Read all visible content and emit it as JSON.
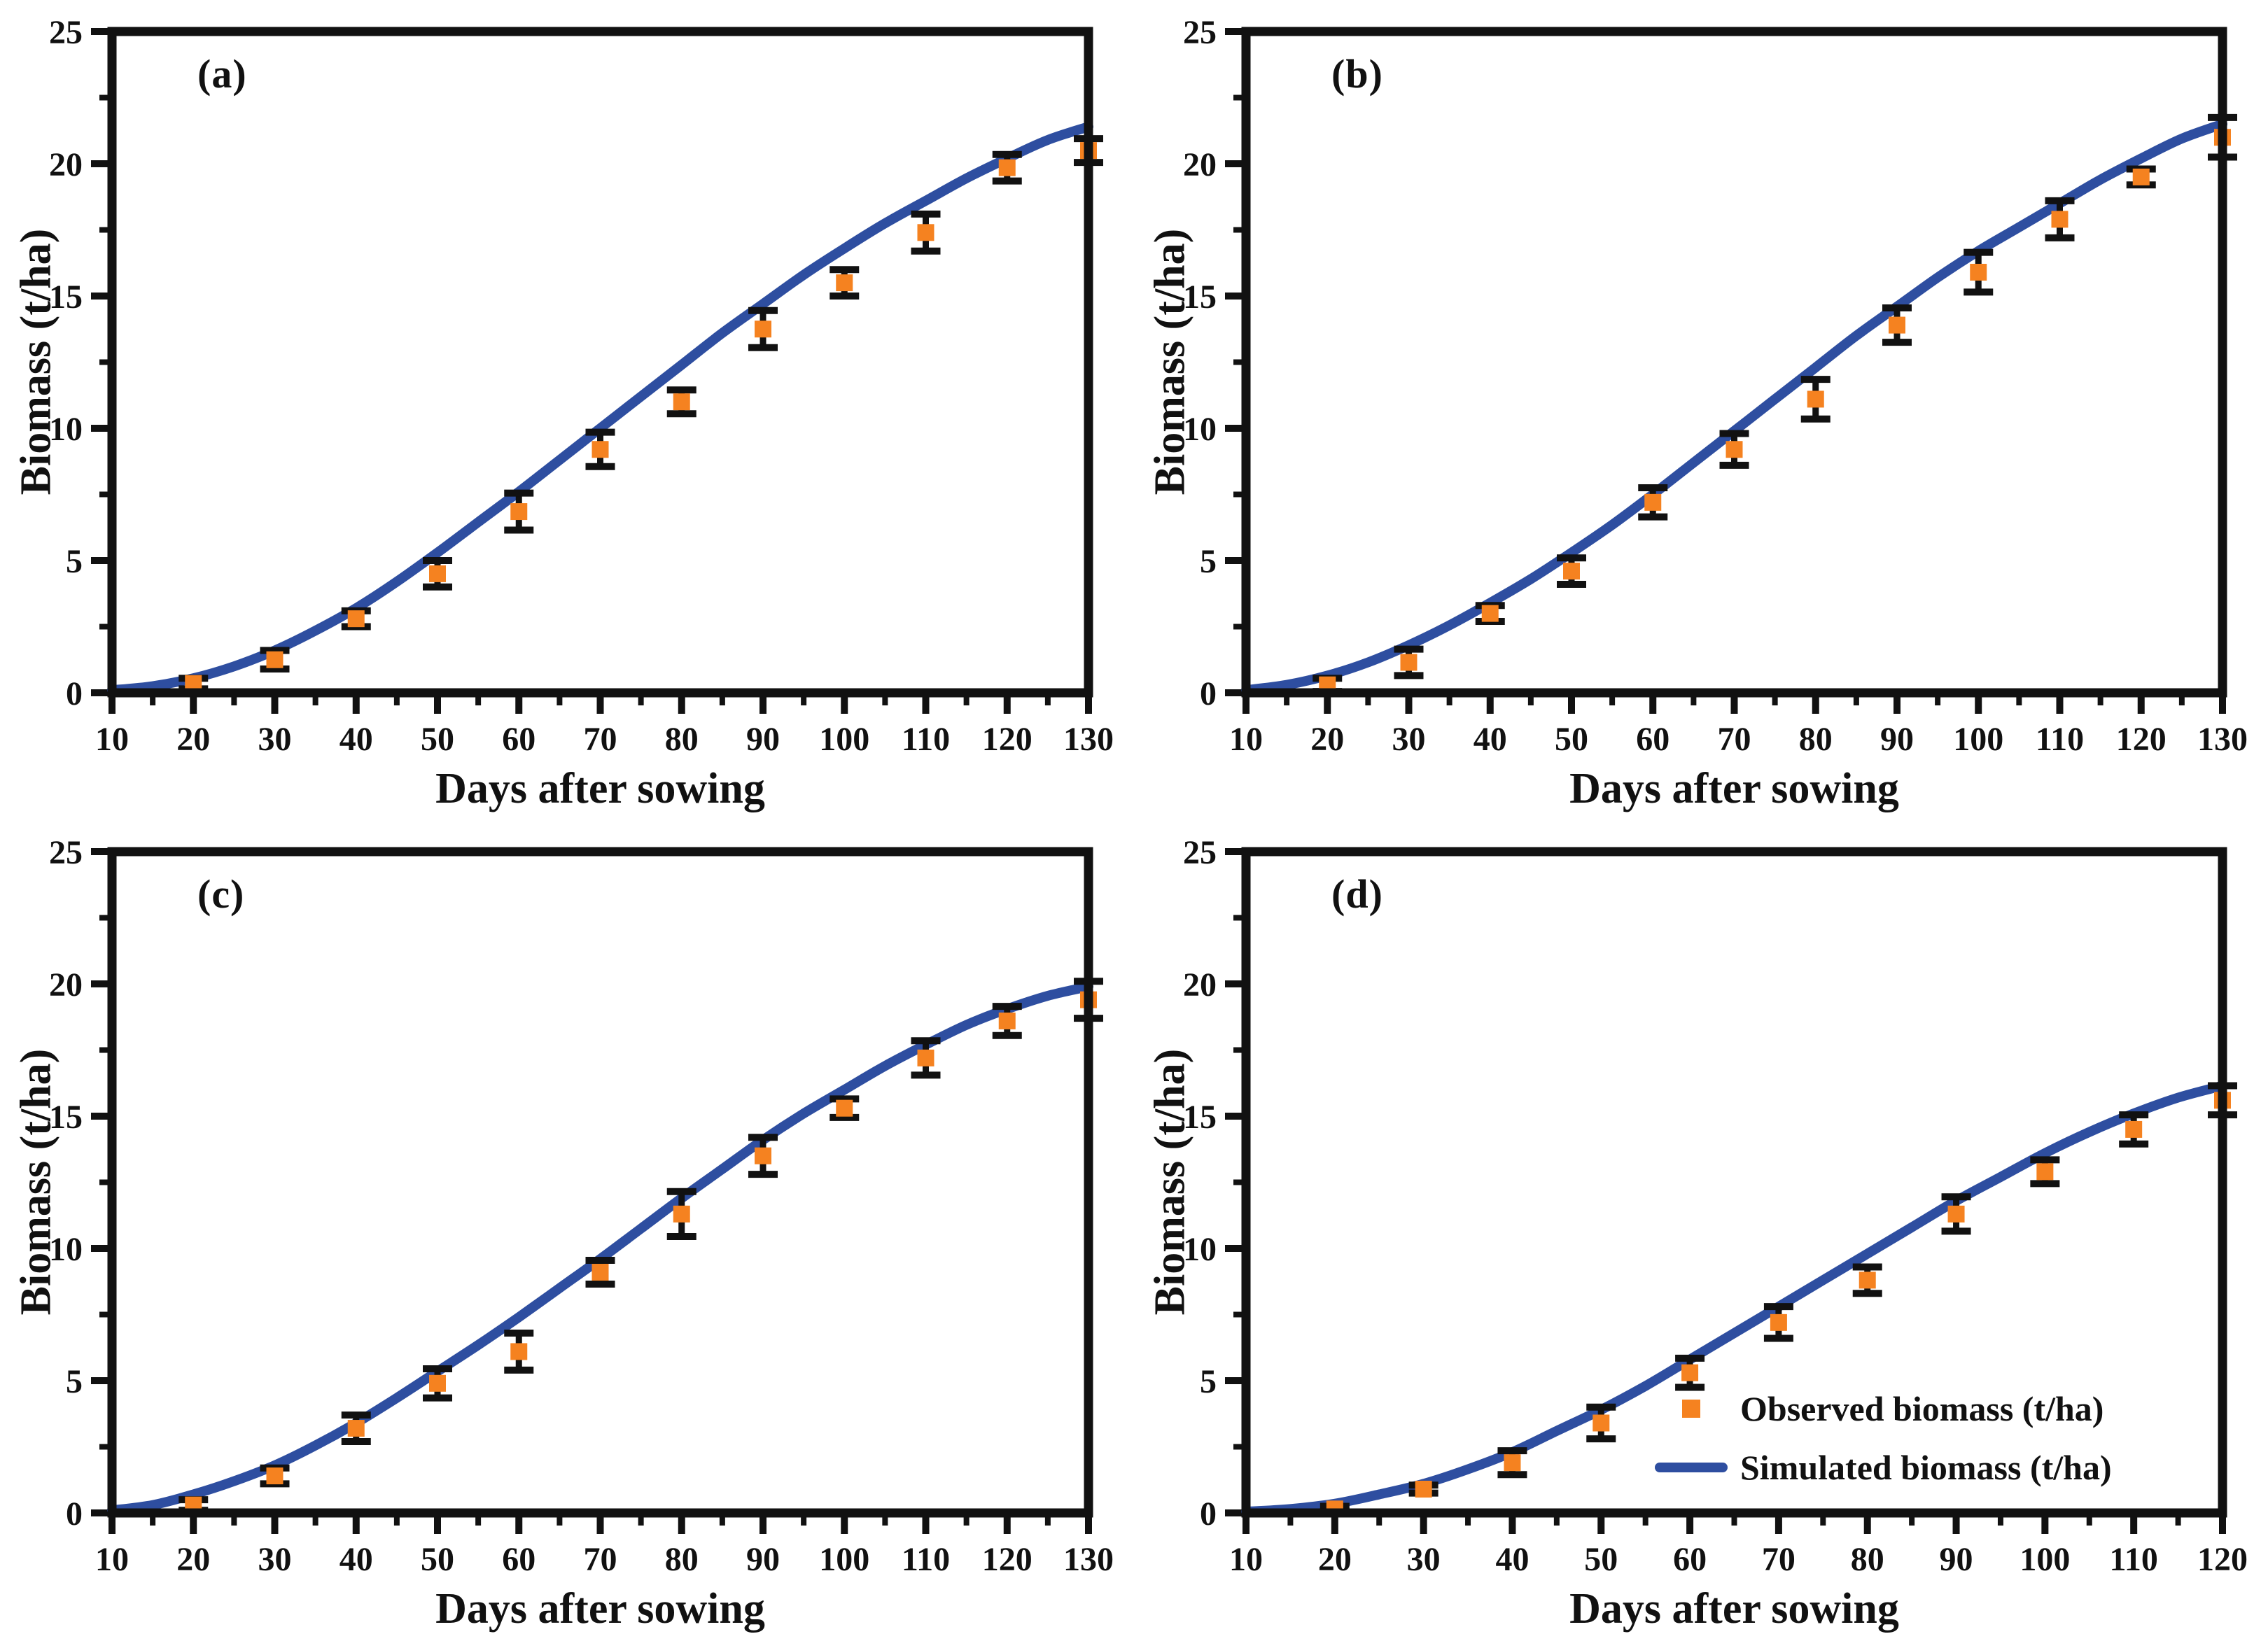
{
  "colors": {
    "observed": "#F58220",
    "simulated": "#2E4EA0",
    "axis": "#111111",
    "background": "#FFFFFF"
  },
  "chart_data": [
    {
      "type": "line",
      "panel_label": "(a)",
      "xlabel": "Days after sowing",
      "ylabel": "Biomass (t/ha)",
      "xlim": [
        10,
        130
      ],
      "ylim": [
        0,
        25
      ],
      "xticks": [
        10,
        20,
        30,
        40,
        50,
        60,
        70,
        80,
        90,
        100,
        110,
        120,
        130
      ],
      "yticks": [
        0,
        5,
        10,
        15,
        20,
        25
      ],
      "x_minor_step": 5,
      "y_minor_step": 2.5,
      "legend_entries": null,
      "series": [
        {
          "name": "Observed biomass (t/ha)",
          "style": "points",
          "x": [
            20,
            30,
            40,
            50,
            60,
            70,
            80,
            90,
            100,
            110,
            120,
            130
          ],
          "y": [
            0.35,
            1.25,
            2.8,
            4.5,
            6.85,
            9.2,
            11.0,
            13.75,
            15.5,
            17.4,
            19.85,
            20.5
          ],
          "yerr": [
            0.2,
            0.35,
            0.3,
            0.5,
            0.7,
            0.65,
            0.45,
            0.7,
            0.5,
            0.7,
            0.5,
            0.45
          ]
        },
        {
          "name": "Simulated biomass (t/ha)",
          "style": "line",
          "x": [
            10,
            15,
            20,
            25,
            30,
            35,
            40,
            45,
            50,
            55,
            60,
            65,
            70,
            75,
            80,
            85,
            90,
            95,
            100,
            105,
            110,
            115,
            120,
            125,
            130
          ],
          "y": [
            0.1,
            0.25,
            0.55,
            1.0,
            1.6,
            2.35,
            3.2,
            4.2,
            5.3,
            6.45,
            7.6,
            8.8,
            10.0,
            11.2,
            12.4,
            13.6,
            14.7,
            15.8,
            16.8,
            17.75,
            18.6,
            19.45,
            20.2,
            20.9,
            21.4
          ]
        }
      ]
    },
    {
      "type": "line",
      "panel_label": "(b)",
      "xlabel": "Days after sowing",
      "ylabel": "Biomass (t/ha)",
      "xlim": [
        10,
        130
      ],
      "ylim": [
        0,
        25
      ],
      "xticks": [
        10,
        20,
        30,
        40,
        50,
        60,
        70,
        80,
        90,
        100,
        110,
        120,
        130
      ],
      "yticks": [
        0,
        5,
        10,
        15,
        20,
        25
      ],
      "x_minor_step": 5,
      "y_minor_step": 2.5,
      "legend_entries": null,
      "series": [
        {
          "name": "Observed biomass (t/ha)",
          "style": "points",
          "x": [
            20,
            30,
            40,
            50,
            60,
            70,
            80,
            90,
            100,
            110,
            120,
            130
          ],
          "y": [
            0.3,
            1.15,
            3.0,
            4.6,
            7.2,
            9.2,
            11.1,
            13.9,
            15.9,
            17.9,
            19.5,
            21.0
          ],
          "yerr": [
            0.25,
            0.5,
            0.3,
            0.5,
            0.55,
            0.6,
            0.75,
            0.65,
            0.75,
            0.7,
            0.3,
            0.75
          ]
        },
        {
          "name": "Simulated biomass (t/ha)",
          "style": "line",
          "x": [
            10,
            15,
            20,
            25,
            30,
            35,
            40,
            45,
            50,
            55,
            60,
            65,
            70,
            75,
            80,
            85,
            90,
            95,
            100,
            105,
            110,
            115,
            120,
            125,
            130
          ],
          "y": [
            0.1,
            0.3,
            0.65,
            1.15,
            1.8,
            2.55,
            3.4,
            4.3,
            5.3,
            6.35,
            7.5,
            8.7,
            9.9,
            11.1,
            12.3,
            13.5,
            14.6,
            15.7,
            16.7,
            17.6,
            18.5,
            19.4,
            20.2,
            20.95,
            21.5
          ]
        }
      ]
    },
    {
      "type": "line",
      "panel_label": "(c)",
      "xlabel": "Days after sowing",
      "ylabel": "Biomass (t/ha)",
      "xlim": [
        10,
        130
      ],
      "ylim": [
        0,
        25
      ],
      "xticks": [
        10,
        20,
        30,
        40,
        50,
        60,
        70,
        80,
        90,
        100,
        110,
        120,
        130
      ],
      "yticks": [
        0,
        5,
        10,
        15,
        20,
        25
      ],
      "x_minor_step": 5,
      "y_minor_step": 2.5,
      "legend_entries": null,
      "series": [
        {
          "name": "Observed biomass (t/ha)",
          "style": "points",
          "x": [
            20,
            30,
            40,
            50,
            60,
            70,
            80,
            90,
            100,
            110,
            120,
            130
          ],
          "y": [
            0.3,
            1.4,
            3.2,
            4.9,
            6.1,
            9.1,
            11.3,
            13.5,
            15.3,
            17.2,
            18.6,
            19.4
          ],
          "yerr": [
            0.2,
            0.3,
            0.5,
            0.55,
            0.7,
            0.45,
            0.85,
            0.7,
            0.35,
            0.65,
            0.55,
            0.7
          ]
        },
        {
          "name": "Simulated biomass (t/ha)",
          "style": "line",
          "x": [
            10,
            15,
            20,
            25,
            30,
            35,
            40,
            45,
            50,
            55,
            60,
            65,
            70,
            75,
            80,
            85,
            90,
            95,
            100,
            105,
            110,
            115,
            120,
            125,
            130
          ],
          "y": [
            0.1,
            0.3,
            0.7,
            1.2,
            1.8,
            2.55,
            3.4,
            4.35,
            5.35,
            6.35,
            7.4,
            8.5,
            9.6,
            10.75,
            11.9,
            13.0,
            14.1,
            15.1,
            16.0,
            16.9,
            17.7,
            18.45,
            19.05,
            19.55,
            19.9
          ]
        }
      ]
    },
    {
      "type": "line",
      "panel_label": "(d)",
      "xlabel": "Days after sowing",
      "ylabel": "Biomass (t/ha)",
      "xlim": [
        10,
        120
      ],
      "ylim": [
        0,
        25
      ],
      "xticks": [
        10,
        20,
        30,
        40,
        50,
        60,
        70,
        80,
        90,
        100,
        110,
        120
      ],
      "yticks": [
        0,
        5,
        10,
        15,
        20,
        25
      ],
      "x_minor_step": 5,
      "y_minor_step": 2.5,
      "legend_entries": [
        "Observed biomass (t/ha)",
        "Simulated biomass (t/ha)"
      ],
      "series": [
        {
          "name": "Observed biomass (t/ha)",
          "style": "points",
          "x": [
            20,
            30,
            40,
            50,
            60,
            70,
            80,
            90,
            100,
            110,
            120
          ],
          "y": [
            0.15,
            0.9,
            1.9,
            3.4,
            5.3,
            7.2,
            8.8,
            11.3,
            12.9,
            14.5,
            15.6
          ],
          "yerr": [
            0.1,
            0.15,
            0.45,
            0.6,
            0.55,
            0.6,
            0.5,
            0.65,
            0.45,
            0.55,
            0.55
          ]
        },
        {
          "name": "Simulated biomass (t/ha)",
          "style": "line",
          "x": [
            10,
            15,
            20,
            25,
            30,
            35,
            40,
            45,
            50,
            55,
            60,
            65,
            70,
            75,
            80,
            85,
            90,
            95,
            100,
            105,
            110,
            115,
            120
          ],
          "y": [
            0.05,
            0.15,
            0.35,
            0.7,
            1.1,
            1.65,
            2.3,
            3.1,
            3.9,
            4.8,
            5.8,
            6.8,
            7.8,
            8.8,
            9.8,
            10.8,
            11.8,
            12.7,
            13.6,
            14.4,
            15.1,
            15.7,
            16.15
          ]
        }
      ]
    }
  ]
}
